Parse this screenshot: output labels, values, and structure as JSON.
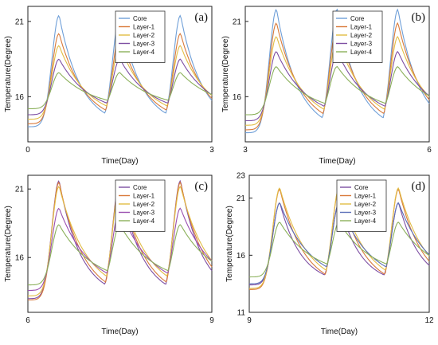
{
  "chart_data": [
    {
      "panel": "(a)",
      "type": "line",
      "xlabel": "Time(Day)",
      "ylabel": "Temperature(Degree)",
      "xlim": [
        0,
        3
      ],
      "ylim": [
        13,
        22
      ],
      "xticks": [
        0,
        3
      ],
      "yticks": [
        16,
        21
      ],
      "legend_position": "top-right",
      "series": [
        {
          "name": "Core",
          "color": "#6f9fd8",
          "peak": 21.4,
          "min": 14.0
        },
        {
          "name": "Layer-1",
          "color": "#d97a3a",
          "peak": 20.2,
          "min": 14.2
        },
        {
          "name": "Layer-2",
          "color": "#e2bd45",
          "peak": 19.4,
          "min": 14.5
        },
        {
          "name": "Layer-3",
          "color": "#7d4ea3",
          "peak": 18.5,
          "min": 14.8
        },
        {
          "name": "Layer-4",
          "color": "#8bb05a",
          "peak": 17.6,
          "min": 15.2
        }
      ]
    },
    {
      "panel": "(b)",
      "type": "line",
      "xlabel": "Time(Day)",
      "ylabel": "Temperature(Degree)",
      "xlim": [
        3,
        6
      ],
      "ylim": [
        13,
        22
      ],
      "xticks": [
        3,
        6
      ],
      "yticks": [
        16,
        21
      ],
      "legend_position": "top-right",
      "series": [
        {
          "name": "Core",
          "color": "#6f9fd8",
          "peak": 21.8,
          "min": 13.6
        },
        {
          "name": "Layer-1",
          "color": "#d97a3a",
          "peak": 20.9,
          "min": 13.8
        },
        {
          "name": "Layer-2",
          "color": "#e2bd45",
          "peak": 20.0,
          "min": 14.1
        },
        {
          "name": "Layer-3",
          "color": "#7d4ea3",
          "peak": 19.0,
          "min": 14.4
        },
        {
          "name": "Layer-4",
          "color": "#8bb05a",
          "peak": 18.0,
          "min": 14.8
        }
      ]
    },
    {
      "panel": "(c)",
      "type": "line",
      "xlabel": "Time(Day)",
      "ylabel": "Temperature(Degree)",
      "xlim": [
        6,
        9
      ],
      "ylim": [
        12,
        22
      ],
      "xticks": [
        6,
        9
      ],
      "yticks": [
        16,
        21
      ],
      "legend_position": "top-right",
      "series": [
        {
          "name": "Core",
          "color": "#7d4ea3",
          "peak": 21.6,
          "min": 13.0
        },
        {
          "name": "Layer-1",
          "color": "#d97a3a",
          "peak": 21.5,
          "min": 12.9
        },
        {
          "name": "Layer-2",
          "color": "#e2bd45",
          "peak": 21.2,
          "min": 13.2
        },
        {
          "name": "Layer-3",
          "color": "#9a4fb0",
          "peak": 19.6,
          "min": 13.6
        },
        {
          "name": "Layer-4",
          "color": "#8bb05a",
          "peak": 18.4,
          "min": 14.0
        }
      ]
    },
    {
      "panel": "(d)",
      "type": "line",
      "xlabel": "Time(Day)",
      "ylabel": "Temperature(Degree)",
      "xlim": [
        9,
        12
      ],
      "ylim": [
        11,
        23
      ],
      "xticks": [
        9,
        12
      ],
      "yticks": [
        11,
        16,
        21,
        23
      ],
      "legend_position": "top-right",
      "series": [
        {
          "name": "Core",
          "color": "#7d4ea3",
          "peak": 20.6,
          "min": 13.4
        },
        {
          "name": "Layer-1",
          "color": "#d97a3a",
          "peak": 21.8,
          "min": 13.0
        },
        {
          "name": "Layer-2",
          "color": "#e2bd45",
          "peak": 21.9,
          "min": 13.1
        },
        {
          "name": "Layer-3",
          "color": "#5b6fb8",
          "peak": 20.6,
          "min": 13.5
        },
        {
          "name": "Layer-4",
          "color": "#8bb05a",
          "peak": 18.9,
          "min": 14.1
        }
      ]
    }
  ]
}
